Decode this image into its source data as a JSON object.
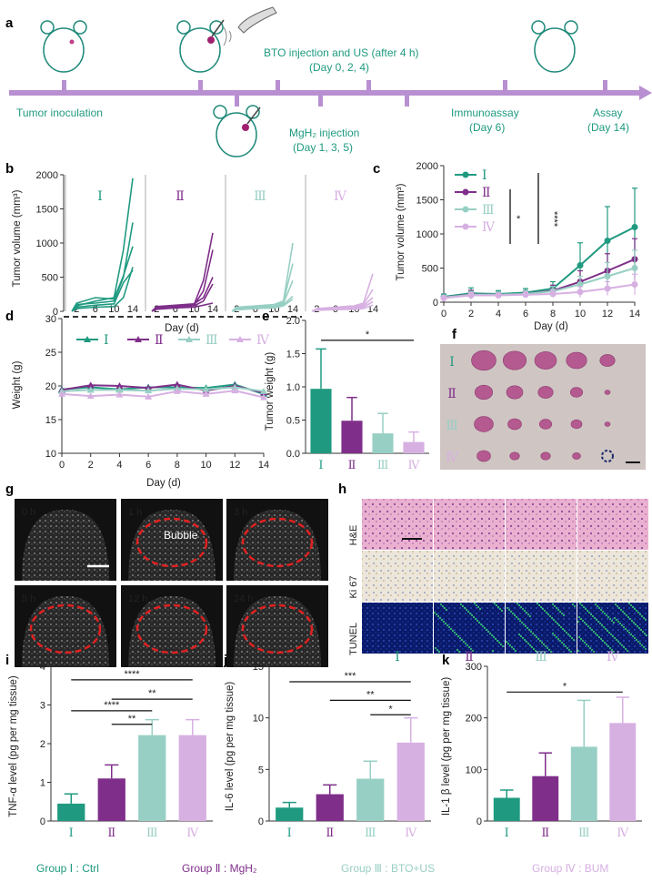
{
  "colors": {
    "g1": "#1f9a80",
    "g2": "#7f2f8a",
    "g3": "#98cfc4",
    "g4": "#d7b0e2",
    "timeline": "#b88fd1",
    "ring": "#e02020"
  },
  "panel_a": {
    "label": "a",
    "events_top": [
      "Tumor inoculation",
      "BTO injection and US (after 4 h)",
      "(Day 0, 2, 4)",
      "Immunoassay",
      "(Day 6)",
      "Assay",
      "(Day 14)"
    ],
    "events_bottom": [
      "MgH₂ injection",
      "(Day 1, 3, 5)"
    ]
  },
  "panel_b": {
    "label": "b",
    "ylabel": "Tumor volume (mm³)",
    "xlabel": "Day (d)",
    "yticks": [
      "0",
      "500",
      "1000",
      "1500",
      "2000"
    ],
    "xticks": [
      "2",
      "6",
      "10",
      "14"
    ],
    "groups": [
      "Ⅰ",
      "Ⅱ",
      "Ⅲ",
      "Ⅳ"
    ]
  },
  "panel_c": {
    "label": "c",
    "ylabel": "Tumor volume (mm³)",
    "xlabel": "Day (d)",
    "yticks": [
      "0",
      "500",
      "1000",
      "1500",
      "2000"
    ],
    "xticks": [
      "0",
      "2",
      "4",
      "6",
      "8",
      "10",
      "12",
      "14"
    ],
    "legend": [
      "Ⅰ",
      "Ⅱ",
      "Ⅲ",
      "Ⅳ"
    ],
    "sig": [
      "*",
      "****"
    ]
  },
  "panel_d": {
    "label": "d",
    "ylabel": "Weight (g)",
    "xlabel": "Day (d)",
    "yticks": [
      "10",
      "15",
      "20",
      "25",
      "30"
    ],
    "xticks": [
      "0",
      "2",
      "4",
      "6",
      "8",
      "10",
      "12",
      "14"
    ],
    "legend": [
      "Ⅰ",
      "Ⅱ",
      "Ⅲ",
      "Ⅳ"
    ]
  },
  "panel_e": {
    "label": "e",
    "ylabel": "Tumor weight (g)",
    "yticks": [
      "0.0",
      "0.5",
      "1.0",
      "1.5",
      "2.0"
    ],
    "xticks": [
      "Ⅰ",
      "Ⅱ",
      "Ⅲ",
      "Ⅳ"
    ],
    "sig": [
      "*"
    ]
  },
  "panel_f": {
    "label": "f",
    "rows": [
      "Ⅰ",
      "Ⅱ",
      "Ⅲ",
      "Ⅳ"
    ]
  },
  "panel_g": {
    "label": "g",
    "times": [
      "0 h",
      "1 h",
      "3 h",
      "5 h",
      "12 h",
      "24 h"
    ],
    "bubble": "Bubble"
  },
  "panel_h": {
    "label": "h",
    "rows": [
      "H&E",
      "Ki 67",
      "TUNEL"
    ],
    "cols": [
      "Ⅰ",
      "Ⅱ",
      "Ⅲ",
      "Ⅳ"
    ]
  },
  "panel_i": {
    "label": "i",
    "ylabel": "TNF-α level (pg per mg tissue)",
    "yticks": [
      "0",
      "1",
      "2",
      "3",
      "4"
    ],
    "xticks": [
      "Ⅰ",
      "Ⅱ",
      "Ⅲ",
      "Ⅳ"
    ],
    "sig": [
      "****",
      "**",
      "****",
      "**"
    ]
  },
  "panel_j": {
    "label": "j",
    "ylabel": "IL-6 level (pg per mg tissue)",
    "yticks": [
      "0",
      "5",
      "10",
      "15"
    ],
    "xticks": [
      "Ⅰ",
      "Ⅱ",
      "Ⅲ",
      "Ⅳ"
    ],
    "sig": [
      "***",
      "**",
      "*"
    ]
  },
  "panel_k": {
    "label": "k",
    "ylabel": "IL-1 β level (pg per mg tissue)",
    "yticks": [
      "0",
      "100",
      "200",
      "300"
    ],
    "xticks": [
      "Ⅰ",
      "Ⅱ",
      "Ⅲ",
      "Ⅳ"
    ],
    "sig": [
      "*"
    ]
  },
  "footer_groups": [
    "Group Ⅰ : Ctrl",
    "Group Ⅱ : MgH₂",
    "Group Ⅲ : BTO+US",
    "Group Ⅳ : BUM"
  ],
  "chart_data": [
    {
      "panel": "c",
      "type": "line",
      "x": [
        0,
        2,
        4,
        6,
        8,
        10,
        12,
        14
      ],
      "ylim": [
        0,
        2000
      ],
      "series": [
        {
          "name": "Ⅰ",
          "values": [
            80,
            130,
            120,
            140,
            200,
            540,
            900,
            1100
          ],
          "err": [
            40,
            80,
            50,
            60,
            100,
            330,
            500,
            570
          ]
        },
        {
          "name": "Ⅱ",
          "values": [
            70,
            115,
            110,
            120,
            170,
            300,
            460,
            630
          ],
          "err": [
            30,
            60,
            40,
            50,
            80,
            160,
            250,
            300
          ]
        },
        {
          "name": "Ⅲ",
          "values": [
            70,
            110,
            110,
            120,
            160,
            260,
            380,
            500
          ],
          "err": [
            30,
            50,
            40,
            50,
            70,
            120,
            200,
            260
          ]
        },
        {
          "name": "Ⅳ",
          "values": [
            60,
            100,
            100,
            110,
            120,
            150,
            200,
            260
          ],
          "err": [
            20,
            40,
            30,
            40,
            50,
            80,
            100,
            150
          ]
        }
      ]
    },
    {
      "panel": "d",
      "type": "line",
      "x": [
        0,
        2,
        4,
        6,
        8,
        10,
        12,
        14
      ],
      "ylim": [
        10,
        30
      ],
      "series": [
        {
          "name": "Ⅰ",
          "values": [
            19.5,
            19.8,
            19.5,
            19.8,
            19.8,
            19.7,
            20.2,
            18.8
          ]
        },
        {
          "name": "Ⅱ",
          "values": [
            19.4,
            20.1,
            20.0,
            19.7,
            20.2,
            19.3,
            20.0,
            19.0
          ]
        },
        {
          "name": "Ⅲ",
          "values": [
            19.2,
            19.4,
            19.4,
            19.3,
            19.6,
            19.5,
            19.8,
            19.2
          ]
        },
        {
          "name": "Ⅳ",
          "values": [
            18.8,
            18.5,
            18.7,
            18.4,
            19.2,
            18.8,
            19.3,
            18.3
          ]
        }
      ]
    },
    {
      "panel": "e",
      "type": "bar",
      "categories": [
        "Ⅰ",
        "Ⅱ",
        "Ⅲ",
        "Ⅳ"
      ],
      "values": [
        0.97,
        0.49,
        0.3,
        0.17
      ],
      "err": [
        0.6,
        0.35,
        0.3,
        0.15
      ],
      "ylim": [
        0,
        2
      ]
    },
    {
      "panel": "i",
      "type": "bar",
      "categories": [
        "Ⅰ",
        "Ⅱ",
        "Ⅲ",
        "Ⅳ"
      ],
      "values": [
        0.45,
        1.1,
        2.22,
        2.22
      ],
      "err": [
        0.25,
        0.35,
        0.4,
        0.4
      ],
      "ylim": [
        0,
        4
      ]
    },
    {
      "panel": "j",
      "type": "bar",
      "categories": [
        "Ⅰ",
        "Ⅱ",
        "Ⅲ",
        "Ⅳ"
      ],
      "values": [
        1.3,
        2.6,
        4.1,
        7.6
      ],
      "err": [
        0.5,
        0.9,
        1.7,
        2.4
      ],
      "ylim": [
        0,
        15
      ]
    },
    {
      "panel": "k",
      "type": "bar",
      "categories": [
        "Ⅰ",
        "Ⅱ",
        "Ⅲ",
        "Ⅳ"
      ],
      "values": [
        45,
        87,
        144,
        190
      ],
      "err": [
        15,
        45,
        90,
        50
      ],
      "ylim": [
        0,
        300
      ]
    }
  ]
}
